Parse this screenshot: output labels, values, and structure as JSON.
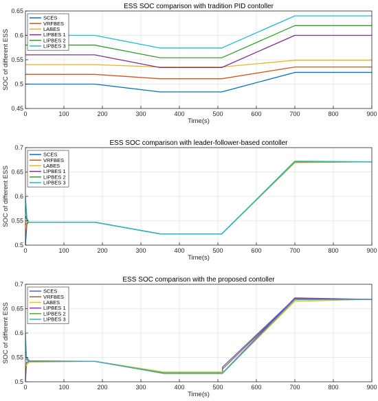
{
  "chart_data": [
    {
      "type": "line",
      "title": "ESS SOC comparison with tradition PID contoller",
      "xlabel": "Time(s)",
      "ylabel": "SOC of different ESS",
      "xlim": [
        0,
        900
      ],
      "ylim": [
        0.45,
        0.65
      ],
      "xticks": [
        0,
        100,
        200,
        300,
        400,
        500,
        600,
        700,
        800,
        900
      ],
      "yticks": [
        0.45,
        0.5,
        0.55,
        0.6,
        0.65
      ],
      "ytick_labels": [
        "0.45",
        "0.5",
        "0.55",
        "0.6",
        "0.65"
      ],
      "grid": true,
      "legend_position": "top-left",
      "series": [
        {
          "name": "SCES",
          "color": "#0072BD",
          "x": [
            0,
            180,
            350,
            510,
            700,
            900
          ],
          "y": [
            0.5,
            0.5,
            0.484,
            0.484,
            0.524,
            0.524
          ]
        },
        {
          "name": "VRFBES",
          "color": "#D95319",
          "x": [
            0,
            180,
            350,
            510,
            700,
            900
          ],
          "y": [
            0.52,
            0.52,
            0.511,
            0.511,
            0.535,
            0.535
          ]
        },
        {
          "name": "LABES",
          "color": "#EDB120",
          "x": [
            0,
            180,
            350,
            510,
            700,
            900
          ],
          "y": [
            0.54,
            0.54,
            0.535,
            0.535,
            0.549,
            0.549
          ]
        },
        {
          "name": "LIPBES 1",
          "color": "#7E2F8E",
          "x": [
            0,
            180,
            350,
            510,
            700,
            900
          ],
          "y": [
            0.56,
            0.56,
            0.534,
            0.534,
            0.6,
            0.6
          ]
        },
        {
          "name": "LIPBES 2",
          "color": "#33A02C",
          "x": [
            0,
            180,
            350,
            510,
            700,
            900
          ],
          "y": [
            0.58,
            0.58,
            0.554,
            0.554,
            0.62,
            0.62
          ]
        },
        {
          "name": "LIPBES 3",
          "color": "#17BECF",
          "x": [
            0,
            180,
            350,
            510,
            700,
            900
          ],
          "y": [
            0.6,
            0.6,
            0.574,
            0.574,
            0.64,
            0.64
          ]
        }
      ]
    },
    {
      "type": "line",
      "title": "ESS SOC comparison with leader-follower-based contoller",
      "xlabel": "Time(s)",
      "ylabel": "SOC of different ESS",
      "xlim": [
        0,
        900
      ],
      "ylim": [
        0.5,
        0.7
      ],
      "xticks": [
        0,
        100,
        200,
        300,
        400,
        500,
        600,
        700,
        800,
        900
      ],
      "yticks": [
        0.5,
        0.55,
        0.6,
        0.65,
        0.7
      ],
      "ytick_labels": [
        "0.5",
        "0.55",
        "0.6",
        "0.65",
        "0.7"
      ],
      "grid": true,
      "legend_position": "top-left",
      "series": [
        {
          "name": "SCES",
          "color": "#0072BD",
          "x": [
            0,
            4,
            8,
            180,
            350,
            510,
            700,
            900
          ],
          "y": [
            0.5,
            0.545,
            0.547,
            0.547,
            0.523,
            0.523,
            0.671,
            0.671
          ]
        },
        {
          "name": "VRFBES",
          "color": "#D95319",
          "x": [
            0,
            4,
            8,
            180,
            350,
            510,
            700,
            900
          ],
          "y": [
            0.52,
            0.543,
            0.547,
            0.547,
            0.523,
            0.523,
            0.67,
            0.671
          ]
        },
        {
          "name": "LABES",
          "color": "#EDB120",
          "x": [
            0,
            4,
            8,
            180,
            350,
            510,
            700,
            900
          ],
          "y": [
            0.54,
            0.55,
            0.547,
            0.547,
            0.523,
            0.523,
            0.669,
            0.671
          ]
        },
        {
          "name": "LIPBES 1",
          "color": "#7E2F8E",
          "x": [
            0,
            4,
            8,
            180,
            350,
            510,
            700,
            900
          ],
          "y": [
            0.56,
            0.552,
            0.547,
            0.547,
            0.523,
            0.523,
            0.671,
            0.671
          ]
        },
        {
          "name": "LIPBES 2",
          "color": "#33A02C",
          "x": [
            0,
            4,
            8,
            180,
            350,
            510,
            700,
            900
          ],
          "y": [
            0.58,
            0.554,
            0.547,
            0.547,
            0.523,
            0.523,
            0.672,
            0.671
          ]
        },
        {
          "name": "LIPBES 3",
          "color": "#17BECF",
          "x": [
            0,
            4,
            8,
            180,
            350,
            510,
            700,
            900
          ],
          "y": [
            0.6,
            0.556,
            0.547,
            0.547,
            0.523,
            0.523,
            0.671,
            0.671
          ]
        }
      ]
    },
    {
      "type": "line",
      "title": "ESS SOC comparison with the proposed contoller",
      "xlabel": "Time(s)",
      "ylabel": "SOC of different ESS",
      "xlim": [
        0,
        900
      ],
      "ylim": [
        0.5,
        0.7
      ],
      "xticks": [
        0,
        100,
        200,
        300,
        400,
        500,
        600,
        700,
        800,
        900
      ],
      "yticks": [
        0.5,
        0.55,
        0.6,
        0.65,
        0.7
      ],
      "ytick_labels": [
        "0.5",
        "0.55",
        "0.6",
        "0.65",
        "0.7"
      ],
      "grid": true,
      "legend_position": "top-left",
      "series": [
        {
          "name": "SCES",
          "color": "#4063D8",
          "x": [
            0,
            3,
            10,
            180,
            360,
            512,
            512,
            700,
            900
          ],
          "y": [
            0.5,
            0.54,
            0.542,
            0.542,
            0.518,
            0.518,
            0.53,
            0.671,
            0.669
          ]
        },
        {
          "name": "VRFBES",
          "color": "#A0622D",
          "x": [
            0,
            3,
            10,
            180,
            360,
            512,
            512,
            700,
            900
          ],
          "y": [
            0.52,
            0.535,
            0.541,
            0.542,
            0.519,
            0.519,
            0.526,
            0.67,
            0.669
          ]
        },
        {
          "name": "LABES",
          "color": "#E3CC00",
          "x": [
            0,
            3,
            10,
            180,
            360,
            515,
            700,
            900
          ],
          "y": [
            0.53,
            0.535,
            0.54,
            0.542,
            0.52,
            0.52,
            0.665,
            0.669
          ]
        },
        {
          "name": "LIPBES 1",
          "color": "#8A2BE2",
          "x": [
            0,
            3,
            10,
            180,
            360,
            512,
            700,
            900
          ],
          "y": [
            0.56,
            0.55,
            0.543,
            0.542,
            0.518,
            0.518,
            0.672,
            0.669
          ]
        },
        {
          "name": "LIPBES 2",
          "color": "#5CA336",
          "x": [
            0,
            3,
            10,
            180,
            360,
            512,
            700,
            900
          ],
          "y": [
            0.58,
            0.545,
            0.542,
            0.542,
            0.517,
            0.517,
            0.669,
            0.669
          ]
        },
        {
          "name": "LIPBES 3",
          "color": "#3FA9D8",
          "x": [
            0,
            3,
            10,
            180,
            360,
            512,
            700,
            900
          ],
          "y": [
            0.6,
            0.548,
            0.542,
            0.542,
            0.518,
            0.518,
            0.668,
            0.669
          ]
        }
      ]
    }
  ]
}
